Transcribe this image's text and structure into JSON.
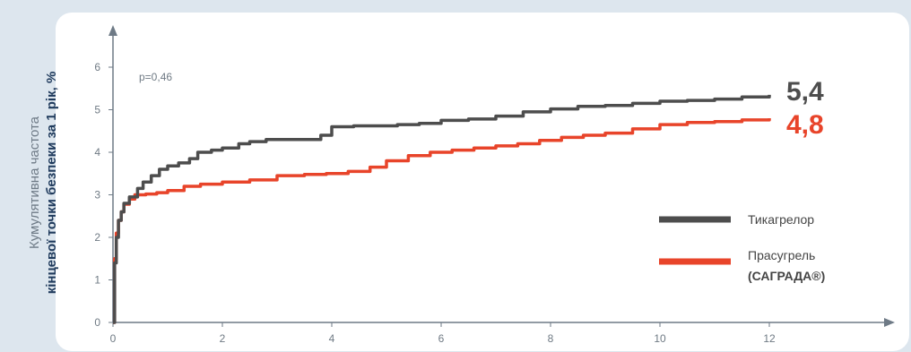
{
  "chart_data": {
    "type": "line",
    "title": "",
    "ylabel_line1": "Кумулятивна частота",
    "ylabel_line2": "кінцевої точки безпеки за 1 рік, %",
    "xlim": [
      0,
      12
    ],
    "ylim": [
      0,
      6
    ],
    "xticks": [
      "0",
      "2",
      "4",
      "6",
      "8",
      "10",
      "12"
    ],
    "yticks": [
      "0",
      "1",
      "2",
      "3",
      "4",
      "5",
      "6"
    ],
    "annotation": "p=0,46",
    "grid": false,
    "legend_position": "right",
    "series": [
      {
        "name": "Тикагрелор",
        "color": "#4d4d4d",
        "end_label": "5,4",
        "x": [
          0,
          0.03,
          0.06,
          0.1,
          0.15,
          0.2,
          0.3,
          0.45,
          0.55,
          0.7,
          0.85,
          1.0,
          1.2,
          1.4,
          1.55,
          1.8,
          2.0,
          2.3,
          2.5,
          2.8,
          3.2,
          3.6,
          3.8,
          4.0,
          4.4,
          4.8,
          5.2,
          5.6,
          6.0,
          6.5,
          7.0,
          7.5,
          8.0,
          8.5,
          9.0,
          9.5,
          10.0,
          10.5,
          11.0,
          11.5,
          12.0
        ],
        "y": [
          0,
          1.4,
          2.0,
          2.4,
          2.6,
          2.8,
          2.95,
          3.15,
          3.3,
          3.45,
          3.6,
          3.68,
          3.75,
          3.85,
          4.0,
          4.05,
          4.1,
          4.2,
          4.25,
          4.3,
          4.3,
          4.3,
          4.4,
          4.6,
          4.62,
          4.62,
          4.65,
          4.68,
          4.75,
          4.78,
          4.85,
          4.95,
          5.02,
          5.08,
          5.1,
          5.15,
          5.2,
          5.22,
          5.25,
          5.3,
          5.35
        ]
      },
      {
        "name": "Прасугрель (САГРАДА®)",
        "name_line1": "Прасугрель",
        "name_line2": "(САГРАДА®)",
        "color": "#e8442a",
        "end_label": "4,8",
        "x": [
          0,
          0.03,
          0.06,
          0.1,
          0.15,
          0.2,
          0.3,
          0.4,
          0.6,
          0.8,
          1.0,
          1.3,
          1.6,
          2.0,
          2.5,
          3.0,
          3.5,
          3.9,
          4.3,
          4.7,
          5.0,
          5.4,
          5.8,
          6.2,
          6.6,
          7.0,
          7.4,
          7.8,
          8.2,
          8.6,
          9.0,
          9.5,
          10.0,
          10.5,
          11.0,
          11.5,
          12.0
        ],
        "y": [
          0,
          1.5,
          2.1,
          2.4,
          2.6,
          2.78,
          2.9,
          3.0,
          3.02,
          3.05,
          3.1,
          3.2,
          3.25,
          3.3,
          3.35,
          3.45,
          3.48,
          3.5,
          3.55,
          3.65,
          3.8,
          3.92,
          4.0,
          4.05,
          4.1,
          4.15,
          4.2,
          4.28,
          4.35,
          4.4,
          4.45,
          4.55,
          4.65,
          4.7,
          4.72,
          4.76,
          4.8
        ]
      }
    ]
  }
}
